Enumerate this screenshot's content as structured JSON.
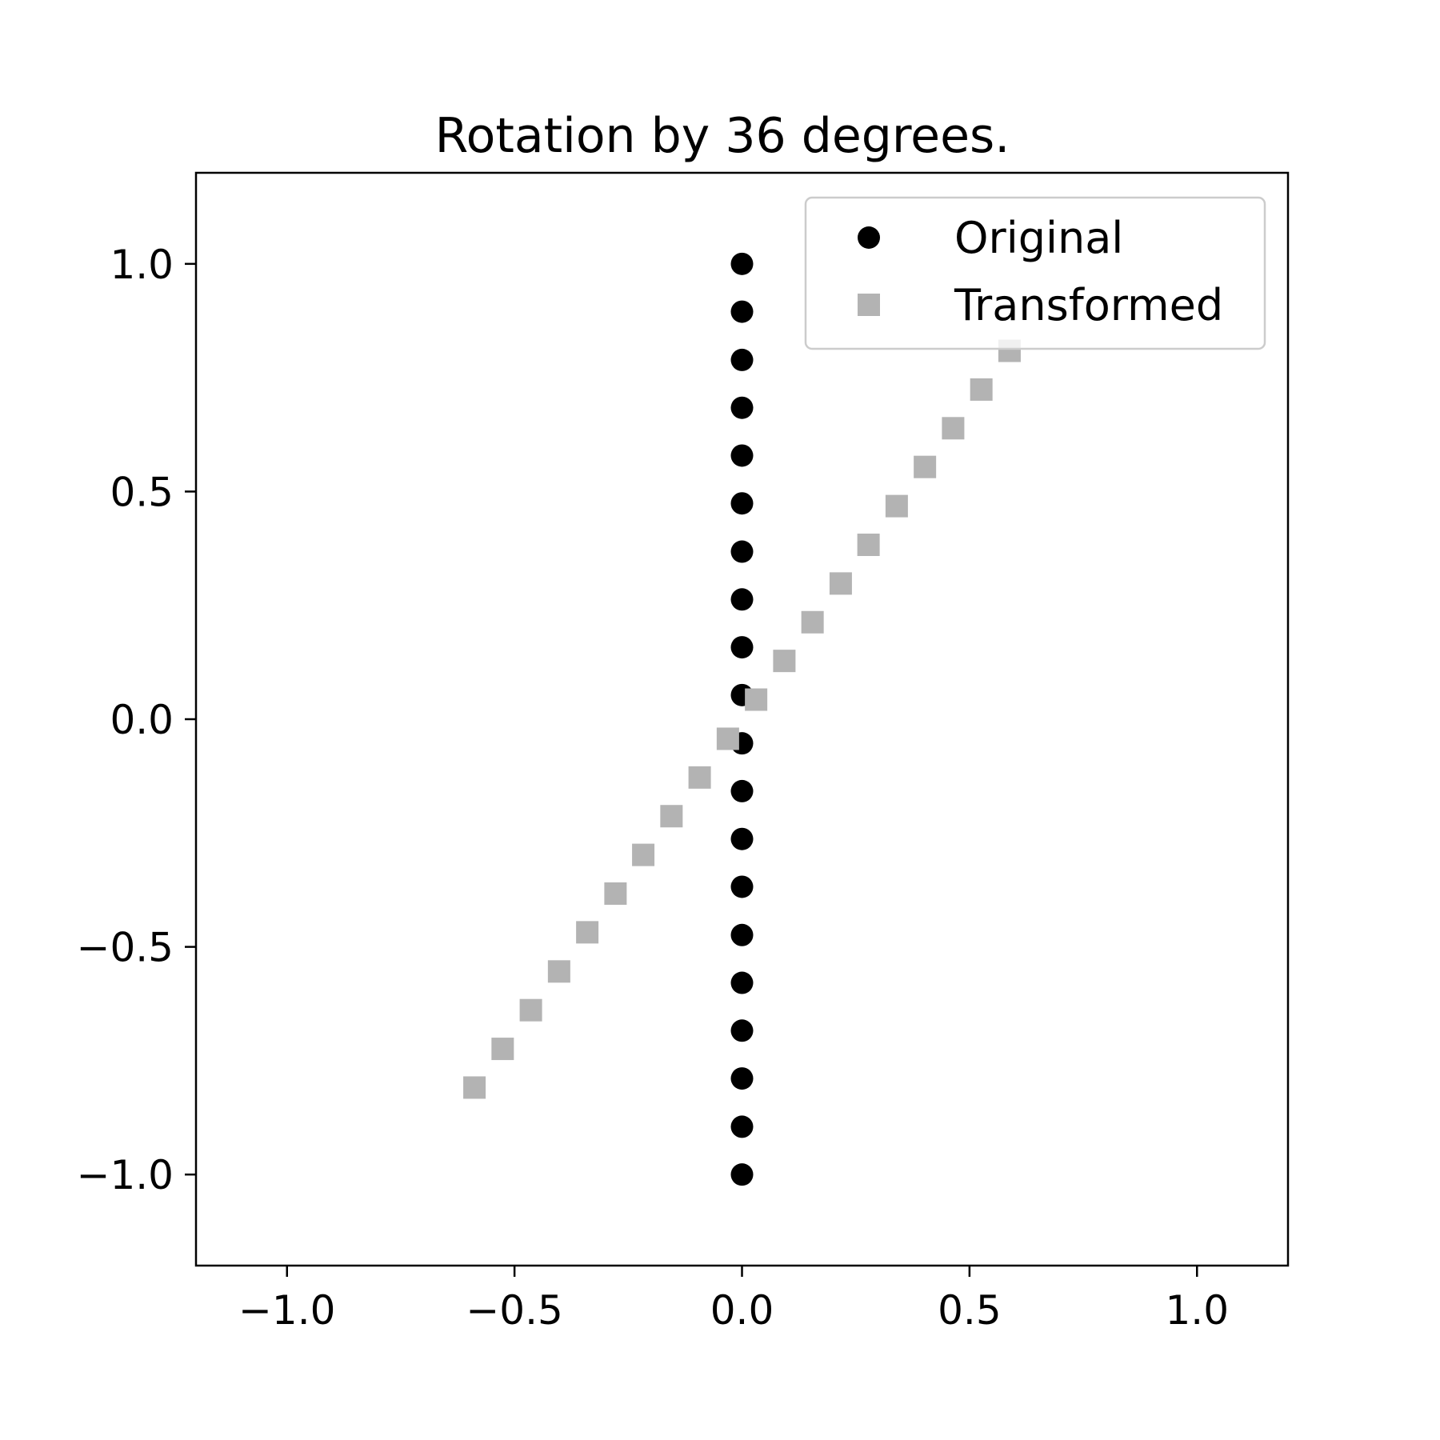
{
  "chart_data": {
    "type": "scatter",
    "title": "Rotation by 36 degrees.",
    "xlabel": "",
    "ylabel": "",
    "xlim": [
      -1.2,
      1.2
    ],
    "ylim": [
      -1.2,
      1.2
    ],
    "xticks": [
      -1.0,
      -0.5,
      0.0,
      0.5,
      1.0
    ],
    "yticks": [
      -1.0,
      -0.5,
      0.0,
      0.5,
      1.0
    ],
    "xtick_labels": [
      "−1.0",
      "−0.5",
      "0.0",
      "0.5",
      "1.0"
    ],
    "ytick_labels": [
      "−1.0",
      "−0.5",
      "0.0",
      "0.5",
      "1.0"
    ],
    "grid": false,
    "legend": {
      "placement": "top-right"
    },
    "series": [
      {
        "name": "Original",
        "marker": "circle",
        "color": "#000000",
        "x": [
          0,
          0,
          0,
          0,
          0,
          0,
          0,
          0,
          0,
          0,
          0,
          0,
          0,
          0,
          0,
          0,
          0,
          0,
          0,
          0
        ],
        "y": [
          -1.0,
          -0.895,
          -0.789,
          -0.684,
          -0.579,
          -0.474,
          -0.368,
          -0.263,
          -0.158,
          -0.053,
          0.053,
          0.158,
          0.263,
          0.368,
          0.474,
          0.579,
          0.684,
          0.789,
          0.895,
          1.0
        ]
      },
      {
        "name": "Transformed",
        "marker": "square",
        "color": "#b3b3b3",
        "x": [
          -0.588,
          -0.526,
          -0.464,
          -0.402,
          -0.34,
          -0.278,
          -0.217,
          -0.155,
          -0.093,
          -0.031,
          0.031,
          0.093,
          0.155,
          0.217,
          0.278,
          0.34,
          0.402,
          0.464,
          0.526,
          0.588
        ],
        "y": [
          -0.809,
          -0.724,
          -0.639,
          -0.554,
          -0.468,
          -0.383,
          -0.298,
          -0.213,
          -0.128,
          -0.043,
          0.043,
          0.128,
          0.213,
          0.298,
          0.383,
          0.468,
          0.554,
          0.639,
          0.724,
          0.809
        ]
      }
    ]
  }
}
